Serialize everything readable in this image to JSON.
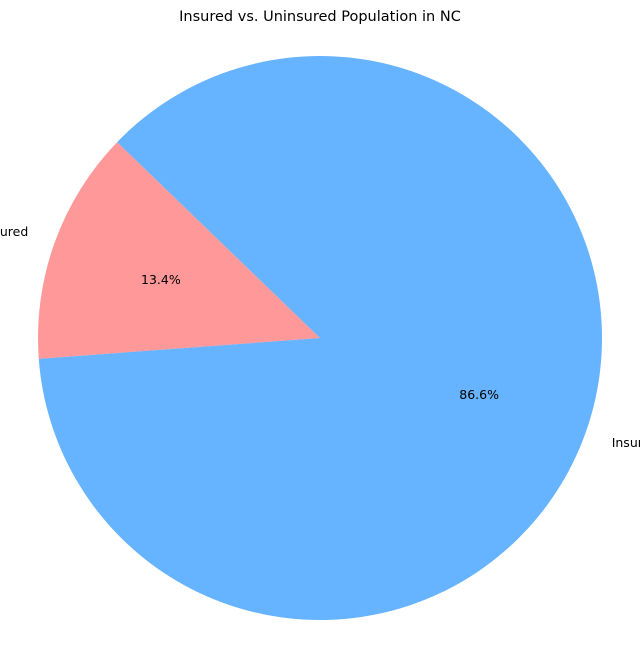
{
  "chart_data": {
    "type": "pie",
    "title": "Insured vs. Uninsured Population in NC",
    "categories": [
      "Uninsured",
      "Insured"
    ],
    "values": [
      13.4,
      86.6
    ],
    "percent_labels": [
      "13.4%",
      "86.6%"
    ],
    "colors": [
      "#ff9999",
      "#66b3ff"
    ],
    "legend": "none"
  }
}
